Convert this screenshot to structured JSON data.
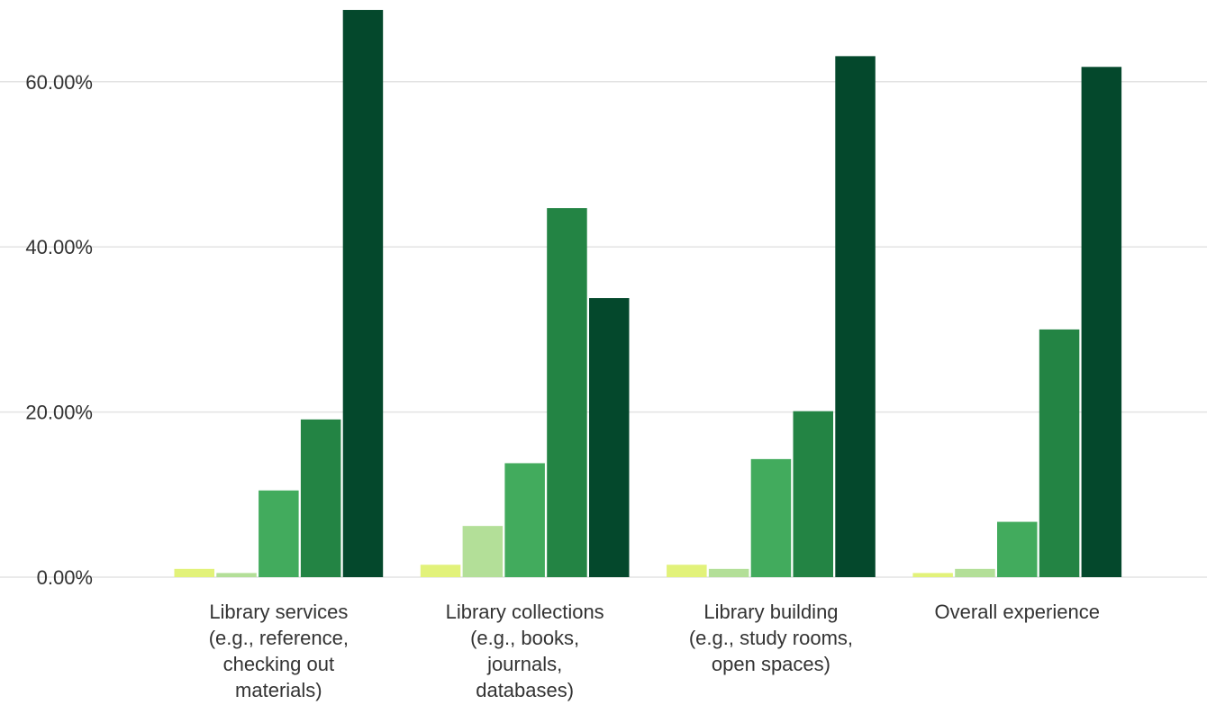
{
  "chart_data": {
    "type": "bar",
    "categories": [
      "Library services (e.g., reference, checking out materials)",
      "Library collections (e.g., books, journals, databases)",
      "Library building (e.g., study rooms, open spaces)",
      "Overall experience"
    ],
    "category_label_lines": [
      [
        "Library services",
        "(e.g., reference,",
        "checking out",
        "materials)"
      ],
      [
        "Library collections",
        "(e.g., books,",
        "journals,",
        "databases)"
      ],
      [
        "Library building",
        "(e.g., study rooms,",
        "open spaces)"
      ],
      [
        "Overall experience"
      ]
    ],
    "series": [
      {
        "color": "#e2f27a",
        "values": [
          1.0,
          1.5,
          1.5,
          0.5
        ]
      },
      {
        "color": "#b3df98",
        "values": [
          0.5,
          6.2,
          1.0,
          1.0
        ]
      },
      {
        "color": "#42ab5d",
        "values": [
          10.5,
          13.8,
          14.3,
          6.7
        ]
      },
      {
        "color": "#238444",
        "values": [
          19.1,
          44.7,
          20.1,
          30.0
        ]
      },
      {
        "color": "#04482c",
        "values": [
          68.7,
          33.8,
          63.1,
          61.8
        ]
      }
    ],
    "yticks": [
      0,
      20,
      40,
      60
    ],
    "ytick_labels": [
      "0.00%",
      "20.00%",
      "40.00%",
      "60.00%"
    ],
    "ylim": [
      0,
      70
    ],
    "grid": true,
    "legend": "none",
    "title": "",
    "xlabel": "",
    "ylabel": ""
  }
}
